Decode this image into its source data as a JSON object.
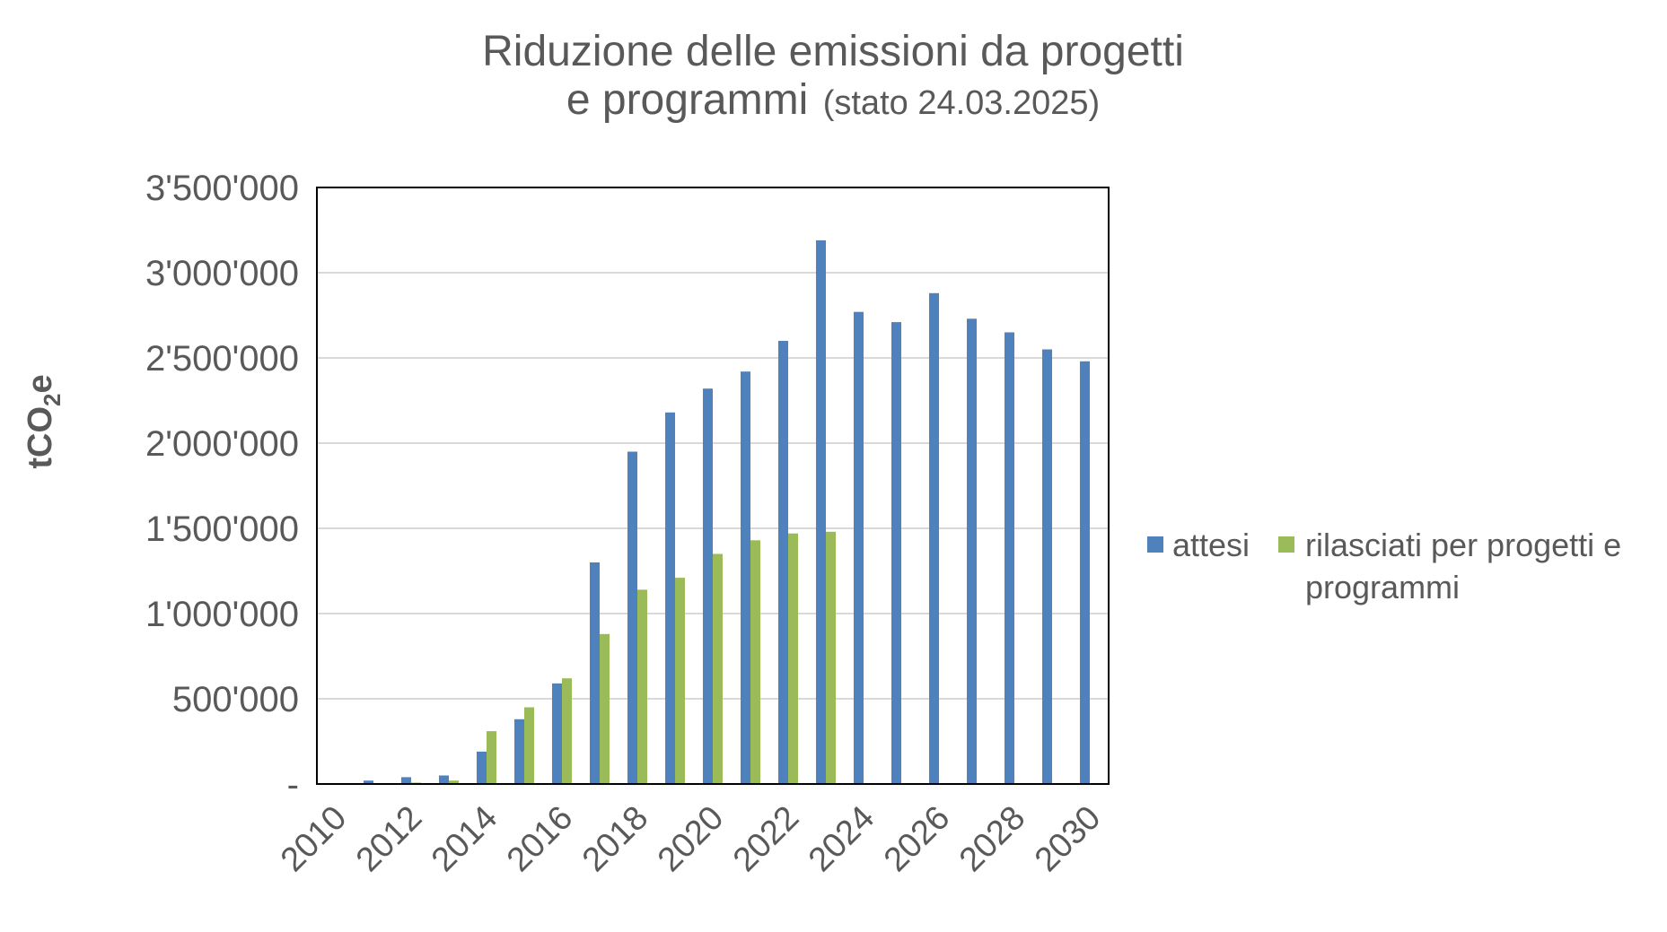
{
  "chart_data": {
    "type": "bar",
    "title": "Riduzione delle emissioni da progetti",
    "title_line2": "e programmi",
    "subtitle": "(stato 24.03.2025)",
    "ylabel": "tCO",
    "ylabel_sub": "2",
    "ylabel_tail": "e",
    "ylim": [
      0,
      3500000
    ],
    "y_ticks": [
      {
        "value": 0,
        "label": "-"
      },
      {
        "value": 500000,
        "label": "500'000"
      },
      {
        "value": 1000000,
        "label": "1'000'000"
      },
      {
        "value": 1500000,
        "label": "1'500'000"
      },
      {
        "value": 2000000,
        "label": "2'000'000"
      },
      {
        "value": 2500000,
        "label": "2'500'000"
      },
      {
        "value": 3000000,
        "label": "3'000'000"
      },
      {
        "value": 3500000,
        "label": "3'500'000"
      }
    ],
    "grid": true,
    "legend_position": "right",
    "categories": [
      2010,
      2011,
      2012,
      2013,
      2014,
      2015,
      2016,
      2017,
      2018,
      2019,
      2020,
      2021,
      2022,
      2023,
      2024,
      2025,
      2026,
      2027,
      2028,
      2029,
      2030
    ],
    "x_tick_labels": [
      "2010",
      "2012",
      "2014",
      "2016",
      "2018",
      "2020",
      "2022",
      "2024",
      "2026",
      "2028",
      "2030"
    ],
    "series": [
      {
        "name": "attesi",
        "color": "#4f81bd",
        "values": [
          0,
          20000,
          40000,
          50000,
          190000,
          380000,
          590000,
          1300000,
          1950000,
          2180000,
          2320000,
          2420000,
          2600000,
          3190000,
          2770000,
          2710000,
          2880000,
          2730000,
          2650000,
          2550000,
          2480000
        ]
      },
      {
        "name": "rilasciati per progetti e programmi",
        "name_lines": [
          "rilasciati per progetti e",
          "programmi"
        ],
        "color": "#9bbb59",
        "values": [
          0,
          3000,
          8000,
          20000,
          310000,
          450000,
          620000,
          880000,
          1140000,
          1210000,
          1350000,
          1430000,
          1470000,
          1480000,
          0,
          0,
          0,
          0,
          0,
          0,
          0
        ]
      }
    ]
  }
}
